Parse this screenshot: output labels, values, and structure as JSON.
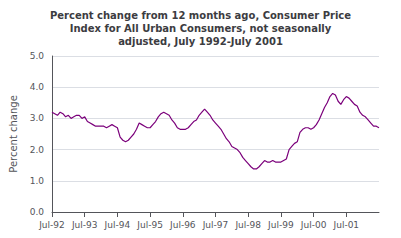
{
  "chart_data": {
    "type": "line",
    "title": "Percent change from 12 months ago, Consumer Price\nIndex for All Urban Consumers, not seasonally\nadjusted, July 1992-July 2001",
    "ylabel": "Percent change",
    "color": "#7b007b",
    "grid": true,
    "ylim": [
      0.0,
      5.0
    ],
    "yticks": [
      {
        "value": 0.0,
        "label": "0.0"
      },
      {
        "value": 1.0,
        "label": "1.0"
      },
      {
        "value": 2.0,
        "label": "2.0"
      },
      {
        "value": 3.0,
        "label": "3.0"
      },
      {
        "value": 4.0,
        "label": "4.0"
      },
      {
        "value": 5.0,
        "label": "5.0"
      }
    ],
    "categories": [
      "Jul-92",
      null,
      null,
      null,
      null,
      null,
      null,
      null,
      null,
      null,
      null,
      null,
      "Jul-93",
      null,
      null,
      null,
      null,
      null,
      null,
      null,
      null,
      null,
      null,
      null,
      "Jul-94",
      null,
      null,
      null,
      null,
      null,
      null,
      null,
      null,
      null,
      null,
      null,
      "Jul-95",
      null,
      null,
      null,
      null,
      null,
      null,
      null,
      null,
      null,
      null,
      null,
      "Jul-96",
      null,
      null,
      null,
      null,
      null,
      null,
      null,
      null,
      null,
      null,
      null,
      "Jul-97",
      null,
      null,
      null,
      null,
      null,
      null,
      null,
      null,
      null,
      null,
      null,
      "Jul-98",
      null,
      null,
      null,
      null,
      null,
      null,
      null,
      null,
      null,
      null,
      null,
      "Jul-99",
      null,
      null,
      null,
      null,
      null,
      null,
      null,
      null,
      null,
      null,
      null,
      "Jul-00",
      null,
      null,
      null,
      null,
      null,
      null,
      null,
      null,
      null,
      null,
      null,
      "Jul-01",
      null,
      null,
      null,
      null,
      null,
      null,
      null,
      null,
      null,
      null,
      null,
      null
    ],
    "values": [
      3.2,
      3.15,
      3.1,
      3.2,
      3.15,
      3.05,
      3.1,
      3.0,
      3.05,
      3.1,
      3.1,
      3.0,
      3.05,
      2.9,
      2.85,
      2.8,
      2.75,
      2.75,
      2.75,
      2.75,
      2.7,
      2.75,
      2.8,
      2.75,
      2.7,
      2.4,
      2.3,
      2.25,
      2.3,
      2.4,
      2.5,
      2.65,
      2.85,
      2.8,
      2.75,
      2.7,
      2.7,
      2.8,
      2.9,
      3.05,
      3.15,
      3.2,
      3.15,
      3.1,
      2.95,
      2.85,
      2.7,
      2.65,
      2.65,
      2.65,
      2.7,
      2.8,
      2.9,
      2.95,
      3.1,
      3.2,
      3.3,
      3.2,
      3.1,
      2.95,
      2.85,
      2.75,
      2.65,
      2.5,
      2.35,
      2.25,
      2.1,
      2.05,
      2.0,
      1.9,
      1.75,
      1.65,
      1.55,
      1.45,
      1.38,
      1.38,
      1.45,
      1.55,
      1.65,
      1.6,
      1.6,
      1.65,
      1.6,
      1.6,
      1.6,
      1.65,
      1.7,
      2.0,
      2.1,
      2.2,
      2.25,
      2.55,
      2.65,
      2.7,
      2.7,
      2.65,
      2.7,
      2.8,
      2.95,
      3.15,
      3.35,
      3.5,
      3.7,
      3.8,
      3.75,
      3.55,
      3.45,
      3.6,
      3.7,
      3.65,
      3.55,
      3.45,
      3.4,
      3.2,
      3.1,
      3.05,
      2.95,
      2.85,
      2.75,
      2.75,
      2.7
    ]
  }
}
